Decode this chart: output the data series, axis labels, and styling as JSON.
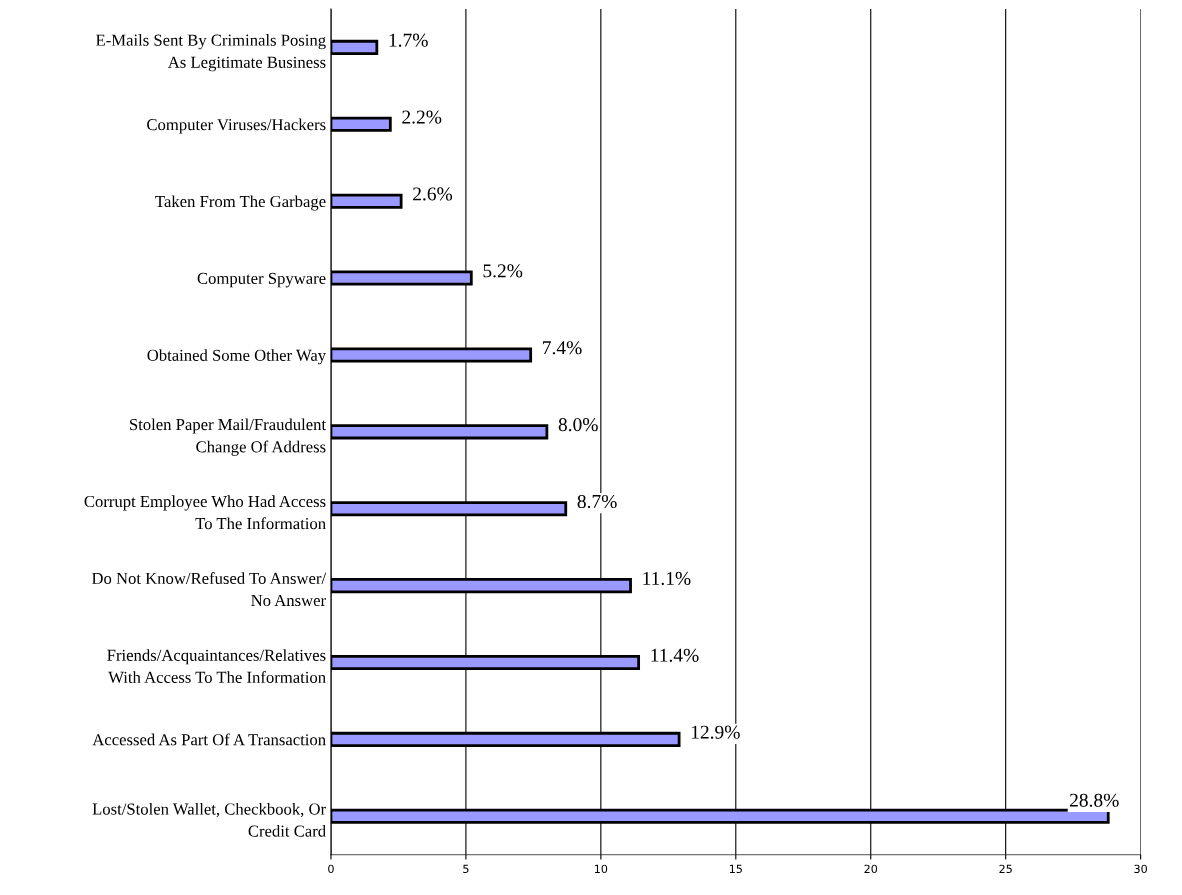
{
  "chart_data": {
    "type": "bar",
    "orientation": "horizontal",
    "categories": [
      "E-Mails Sent By Criminals Posing\nAs Legitimate Business",
      "Computer Viruses/Hackers",
      "Taken From The Garbage",
      "Computer Spyware",
      "Obtained Some Other Way",
      "Stolen Paper Mail/Fraudulent\nChange Of Address",
      "Corrupt Employee Who Had Access\nTo The Information",
      "Do Not Know/Refused To Answer/\nNo Answer",
      "Friends/Acquaintances/Relatives\nWith Access To The Information",
      "Accessed As Part Of A Transaction",
      "Lost/Stolen Wallet, Checkbook, Or\nCredit Card"
    ],
    "values": [
      1.7,
      2.2,
      2.6,
      5.2,
      7.4,
      8.0,
      8.7,
      11.1,
      11.4,
      12.9,
      28.8
    ],
    "value_labels": [
      "1.7%",
      "2.2%",
      "2.6%",
      "5.2%",
      "7.4%",
      "8.0%",
      "8.7%",
      "11.1%",
      "11.4%",
      "12.9%",
      "28.8%"
    ],
    "color": "#9999ff",
    "xlim": [
      0,
      30
    ],
    "xticks": [
      0,
      5,
      10,
      15,
      20,
      25,
      30
    ],
    "grid": "x"
  }
}
